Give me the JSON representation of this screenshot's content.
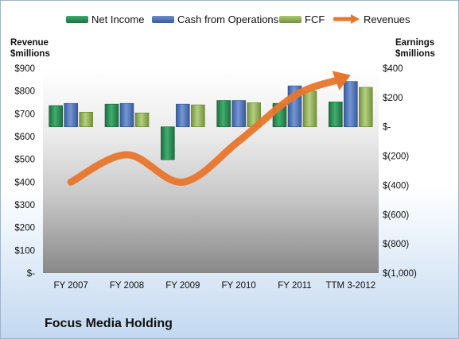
{
  "caption": "Focus Media Holding",
  "chart_data": {
    "type": "bar",
    "title": "",
    "categories": [
      "FY 2007",
      "FY 2008",
      "FY 2009",
      "FY 2010",
      "FY 2011",
      "TTM 3-2012"
    ],
    "left_axis": {
      "label_line1": "Revenue",
      "label_line2": "$millions",
      "min": 0,
      "max": 900,
      "step": 100,
      "tick_labels": [
        "$-",
        "$100",
        "$200",
        "$300",
        "$400",
        "$500",
        "$600",
        "$700",
        "$800",
        "$900"
      ]
    },
    "right_axis": {
      "label_line1": "Earnings",
      "label_line2": "$millions",
      "min": -1000,
      "max": 400,
      "step": 200,
      "tick_labels": [
        "$(1,000)",
        "$(800)",
        "$(600)",
        "$(400)",
        "$(200)",
        "$-",
        "$200",
        "$400"
      ]
    },
    "series": [
      {
        "name": "Net Income",
        "axis": "right",
        "kind": "bar",
        "color": "#2e8b57",
        "values": [
          145,
          155,
          -225,
          180,
          160,
          170
        ]
      },
      {
        "name": "Cash from Operations",
        "axis": "right",
        "kind": "bar",
        "color": "#4f73b5",
        "values": [
          160,
          160,
          155,
          180,
          280,
          310
        ]
      },
      {
        "name": "FCF",
        "axis": "right",
        "kind": "bar",
        "color": "#93b05a",
        "values": [
          100,
          95,
          150,
          165,
          245,
          270
        ]
      },
      {
        "name": "Revenues",
        "axis": "left",
        "kind": "line",
        "color": "#e8762c",
        "values": [
          400,
          520,
          400,
          580,
          780,
          870
        ]
      }
    ],
    "grid": false,
    "legend_position": "top"
  }
}
